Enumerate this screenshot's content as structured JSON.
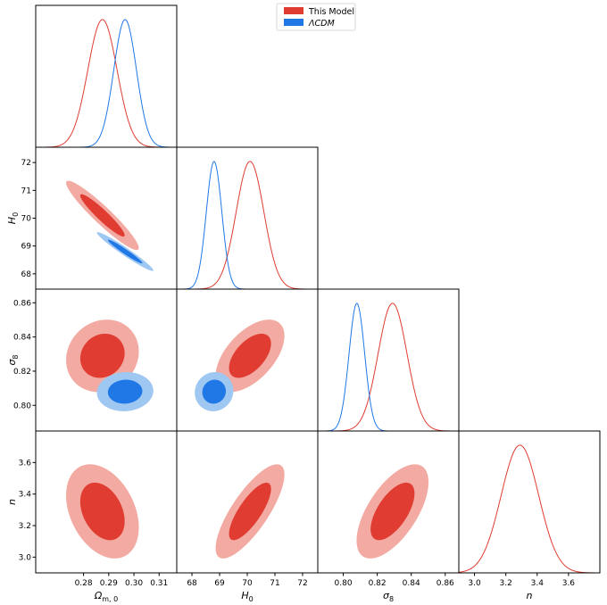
{
  "chart_data": {
    "type": "corner",
    "legend": {
      "placement": "top-center",
      "entries": [
        {
          "label": "This Model",
          "color": "#e03c31"
        },
        {
          "label": "ΛCDM",
          "color": "#1f78e6"
        }
      ]
    },
    "parameters": [
      {
        "id": "om",
        "label": "Ω_{m,0}",
        "label_main": "Ω",
        "label_sub": "m, 0",
        "range": [
          0.261,
          0.317
        ],
        "ticks": [
          0.28,
          0.29,
          0.3,
          0.31
        ],
        "tick_labels": [
          "0.28",
          "0.29",
          "0.30",
          "0.31"
        ]
      },
      {
        "id": "h0",
        "label": "H_0",
        "label_main": "H",
        "label_sub": "0",
        "range": [
          67.45,
          72.55
        ],
        "ticks": [
          68,
          69,
          70,
          71,
          72
        ],
        "tick_labels": [
          "68",
          "69",
          "70",
          "71",
          "72"
        ]
      },
      {
        "id": "s8",
        "label": "σ_8",
        "label_main": "σ",
        "label_sub": "8",
        "range": [
          0.785,
          0.868
        ],
        "ticks": [
          0.8,
          0.82,
          0.84,
          0.86
        ],
        "tick_labels": [
          "0.80",
          "0.82",
          "0.84",
          "0.86"
        ]
      },
      {
        "id": "n",
        "label": "n",
        "label_main": "n",
        "label_sub": "",
        "range": [
          2.9,
          3.8
        ],
        "ticks": [
          3.0,
          3.2,
          3.4,
          3.6
        ],
        "tick_labels": [
          "3.0",
          "3.2",
          "3.4",
          "3.6"
        ]
      }
    ],
    "series": [
      {
        "name": "This Model",
        "color": "#e03c31",
        "light_color": "#f2aaa2",
        "params": {
          "om": true,
          "h0": true,
          "s8": true,
          "n": true
        },
        "mean": {
          "om": 0.2875,
          "h0": 70.1,
          "s8": 0.829,
          "n": 3.29
        },
        "sigma": {
          "om": 0.0058,
          "h0": 0.5,
          "s8": 0.0085,
          "n": 0.12
        },
        "corr": {
          "om|h0": -0.94,
          "om|s8": 0.12,
          "om|n": -0.34,
          "h0|s8": 0.55,
          "h0|n": 0.78,
          "s8|n": 0.62
        }
      },
      {
        "name": "ΛCDM",
        "color": "#1f78e6",
        "light_color": "#9ec7f2",
        "params": {
          "om": true,
          "h0": true,
          "s8": true,
          "n": false
        },
        "mean": {
          "om": 0.2965,
          "h0": 68.8,
          "s8": 0.808,
          "n": null
        },
        "sigma": {
          "om": 0.0045,
          "h0": 0.28,
          "s8": 0.0046,
          "n": null
        },
        "corr": {
          "om|h0": -0.97,
          "om|s8": 0.05,
          "h0|s8": 0.05
        }
      }
    ]
  }
}
